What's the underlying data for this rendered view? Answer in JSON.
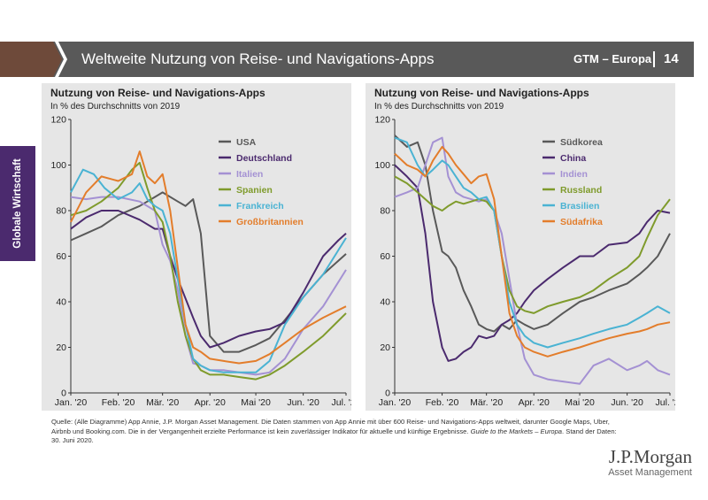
{
  "header": {
    "title": "Weltweite Nutzung von Reise- und Navigations-Apps",
    "region": "GTM – Europa",
    "page": "14",
    "bar_color": "#595959",
    "chevron_color": "#6e4a3a"
  },
  "side_tab": {
    "label": "Globale Wirtschaft",
    "color": "#4b2a6e"
  },
  "footnote": {
    "main": "Quelle: (Alle Diagramme) App Annie, J.P. Morgan Asset Management. Die Daten stammen von App Annie mit über 600 Reise- und Navigations-Apps weltweit, darunter Google Maps, Uber, Airbnb und Booking.com. Die in der Vergangenheit erzielte Performance ist kein zuverlässiger Indikator für aktuelle und künftige Ergebnisse. ",
    "guide": "Guide to the Markets – Europa",
    "date": ". Stand der Daten: 30. Juni 2020."
  },
  "logo": {
    "line1": "J.P.Morgan",
    "line2": "Asset Management"
  },
  "chart_data": [
    {
      "type": "line",
      "title": "Nutzung von Reise- und Navigations-Apps",
      "subtitle": "In % des Durchschnitts von 2019",
      "ylim": [
        0,
        120
      ],
      "yticks": [
        0,
        20,
        40,
        60,
        80,
        100,
        120
      ],
      "xlim": [
        0,
        180
      ],
      "xticks": [
        0,
        31,
        60,
        91,
        121,
        152,
        182
      ],
      "xticklabels": [
        "Jan. '20",
        "Feb. '20",
        "Mär. '20",
        "Apr. '20",
        "Mai '20",
        "Jun. '20",
        "Jul. '20"
      ],
      "grid": false,
      "legend": "top-right",
      "series": [
        {
          "name": "USA",
          "color": "#595959",
          "x": [
            0,
            10,
            20,
            31,
            45,
            55,
            60,
            70,
            75,
            80,
            85,
            91,
            100,
            110,
            121,
            130,
            140,
            152,
            165,
            180
          ],
          "y": [
            67,
            70,
            73,
            78,
            82,
            86,
            88,
            84,
            82,
            85,
            70,
            25,
            18,
            18,
            21,
            24,
            32,
            42,
            52,
            61
          ]
        },
        {
          "name": "Deutschland",
          "color": "#4b2a6e",
          "x": [
            0,
            10,
            20,
            31,
            45,
            55,
            60,
            65,
            70,
            80,
            85,
            91,
            100,
            110,
            121,
            130,
            140,
            152,
            165,
            175,
            180
          ],
          "y": [
            72,
            77,
            80,
            80,
            76,
            72,
            72,
            60,
            50,
            33,
            25,
            20,
            22,
            25,
            27,
            28,
            31,
            44,
            60,
            67,
            70
          ]
        },
        {
          "name": "Italien",
          "color": "#a491d3",
          "x": [
            0,
            10,
            20,
            31,
            45,
            55,
            60,
            65,
            70,
            75,
            80,
            85,
            91,
            100,
            110,
            121,
            130,
            140,
            152,
            165,
            180
          ],
          "y": [
            86,
            85,
            86,
            86,
            84,
            80,
            65,
            58,
            45,
            25,
            13,
            12,
            10,
            10,
            9,
            8,
            9,
            15,
            28,
            38,
            54
          ]
        },
        {
          "name": "Spanien",
          "color": "#7f9b2c",
          "x": [
            0,
            10,
            20,
            31,
            40,
            45,
            50,
            55,
            60,
            65,
            70,
            75,
            80,
            85,
            91,
            100,
            110,
            121,
            130,
            140,
            152,
            165,
            180
          ],
          "y": [
            78,
            80,
            84,
            90,
            98,
            101,
            90,
            80,
            75,
            60,
            40,
            25,
            15,
            10,
            8,
            8,
            7,
            6,
            8,
            12,
            18,
            25,
            35
          ]
        },
        {
          "name": "Frankreich",
          "color": "#4ab3d3",
          "x": [
            0,
            8,
            15,
            22,
            31,
            40,
            45,
            50,
            55,
            60,
            65,
            70,
            75,
            80,
            85,
            91,
            100,
            110,
            121,
            130,
            140,
            152,
            165,
            180
          ],
          "y": [
            88,
            98,
            96,
            90,
            85,
            88,
            92,
            85,
            82,
            80,
            70,
            50,
            30,
            15,
            12,
            10,
            9,
            9,
            9,
            14,
            30,
            42,
            52,
            68
          ]
        },
        {
          "name": "Großbritannien",
          "color": "#e37d2b",
          "x": [
            0,
            10,
            20,
            31,
            40,
            45,
            50,
            55,
            60,
            65,
            70,
            75,
            80,
            85,
            91,
            100,
            110,
            121,
            130,
            140,
            152,
            165,
            180
          ],
          "y": [
            75,
            88,
            95,
            93,
            96,
            106,
            95,
            92,
            96,
            80,
            55,
            30,
            20,
            18,
            15,
            14,
            13,
            14,
            17,
            22,
            28,
            33,
            38
          ]
        }
      ]
    },
    {
      "type": "line",
      "title": "Nutzung von Reise- und Navigations-Apps",
      "subtitle": "In % des Durchschnitts von 2019",
      "ylim": [
        0,
        120
      ],
      "yticks": [
        0,
        20,
        40,
        60,
        80,
        100,
        120
      ],
      "xlim": [
        0,
        180
      ],
      "xticks": [
        0,
        31,
        60,
        91,
        121,
        152,
        182
      ],
      "xticklabels": [
        "Jan. '20",
        "Feb. '20",
        "Mär. '20",
        "Apr. '20",
        "Mai '20",
        "Jun. '20",
        "Jul. '20"
      ],
      "grid": false,
      "legend": "top-right",
      "series": [
        {
          "name": "Südkorea",
          "color": "#595959",
          "x": [
            0,
            8,
            15,
            20,
            25,
            31,
            35,
            40,
            45,
            50,
            55,
            60,
            65,
            70,
            75,
            80,
            85,
            91,
            100,
            110,
            121,
            130,
            140,
            152,
            160,
            165,
            172,
            180
          ],
          "y": [
            113,
            108,
            110,
            100,
            80,
            62,
            60,
            55,
            45,
            38,
            30,
            28,
            27,
            30,
            28,
            32,
            30,
            28,
            30,
            35,
            40,
            42,
            45,
            48,
            52,
            55,
            60,
            70
          ]
        },
        {
          "name": "China",
          "color": "#4b2a6e",
          "x": [
            0,
            8,
            15,
            20,
            25,
            31,
            35,
            40,
            45,
            50,
            55,
            60,
            65,
            70,
            75,
            80,
            85,
            91,
            100,
            110,
            121,
            130,
            140,
            152,
            160,
            165,
            172,
            180
          ],
          "y": [
            100,
            95,
            90,
            70,
            40,
            20,
            14,
            15,
            18,
            20,
            25,
            24,
            25,
            30,
            32,
            35,
            40,
            45,
            50,
            55,
            60,
            60,
            65,
            66,
            70,
            75,
            80,
            79
          ]
        },
        {
          "name": "Indien",
          "color": "#a491d3",
          "x": [
            0,
            8,
            15,
            20,
            25,
            31,
            35,
            40,
            45,
            50,
            55,
            60,
            65,
            70,
            75,
            80,
            85,
            91,
            100,
            110,
            121,
            130,
            140,
            152,
            160,
            165,
            172,
            180
          ],
          "y": [
            86,
            88,
            90,
            100,
            110,
            112,
            95,
            88,
            86,
            85,
            84,
            85,
            80,
            70,
            50,
            30,
            15,
            8,
            6,
            5,
            4,
            12,
            15,
            10,
            12,
            14,
            10,
            8
          ]
        },
        {
          "name": "Russland",
          "color": "#7f9b2c",
          "x": [
            0,
            8,
            15,
            20,
            25,
            31,
            35,
            40,
            45,
            50,
            55,
            60,
            65,
            70,
            75,
            80,
            85,
            91,
            100,
            110,
            121,
            130,
            140,
            152,
            160,
            165,
            172,
            180
          ],
          "y": [
            95,
            92,
            88,
            85,
            82,
            80,
            82,
            84,
            83,
            84,
            85,
            84,
            80,
            60,
            45,
            38,
            36,
            35,
            38,
            40,
            42,
            45,
            50,
            55,
            60,
            68,
            78,
            85
          ]
        },
        {
          "name": "Brasilien",
          "color": "#4ab3d3",
          "x": [
            0,
            8,
            15,
            20,
            25,
            31,
            35,
            40,
            45,
            50,
            55,
            60,
            65,
            70,
            75,
            80,
            85,
            91,
            100,
            110,
            121,
            130,
            140,
            152,
            160,
            165,
            172,
            180
          ],
          "y": [
            112,
            110,
            100,
            95,
            98,
            102,
            100,
            95,
            90,
            88,
            85,
            86,
            80,
            60,
            40,
            30,
            25,
            22,
            20,
            22,
            24,
            26,
            28,
            30,
            33,
            35,
            38,
            35
          ]
        },
        {
          "name": "Südafrika",
          "color": "#e37d2b",
          "x": [
            0,
            8,
            15,
            20,
            25,
            31,
            35,
            40,
            45,
            50,
            55,
            60,
            65,
            70,
            75,
            80,
            85,
            91,
            100,
            110,
            121,
            130,
            140,
            152,
            160,
            165,
            172,
            180
          ],
          "y": [
            105,
            100,
            98,
            95,
            102,
            108,
            105,
            100,
            96,
            92,
            95,
            96,
            85,
            60,
            35,
            25,
            20,
            18,
            16,
            18,
            20,
            22,
            24,
            26,
            27,
            28,
            30,
            31
          ]
        }
      ]
    }
  ]
}
